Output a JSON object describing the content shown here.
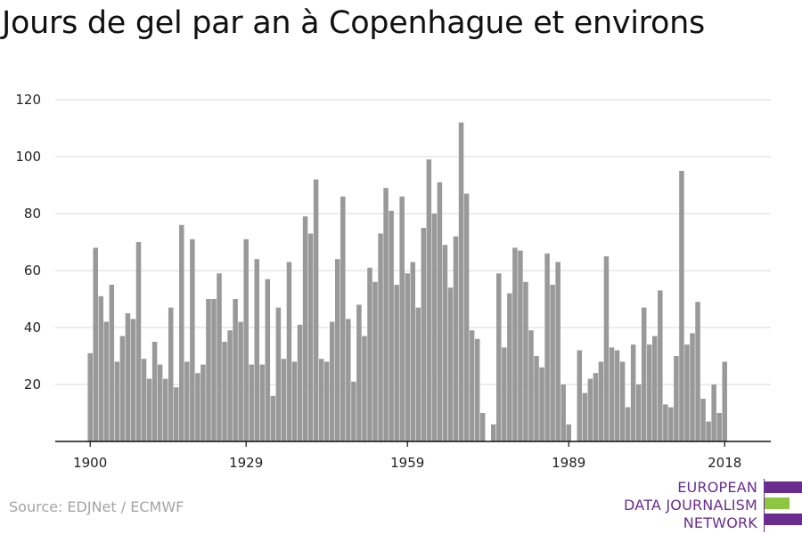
{
  "title": "Jours de gel par an à Copenhague et environs",
  "source": "Source: EDJNet / ECMWF",
  "logo": {
    "lines": [
      "EUROPEAN",
      "DATA JOURNALISM",
      "NETWORK"
    ],
    "colors": {
      "text": "#6a2c91",
      "purple": "#6a2c91",
      "green": "#8dc63f"
    }
  },
  "colors": {
    "bar": "#999999",
    "grid": "#d9d9d9",
    "axis": "#111111",
    "tick_text": "#222222"
  },
  "chart_data": {
    "type": "bar",
    "title": "Jours de gel par an à Copenhague et environs",
    "xlabel": "",
    "ylabel": "",
    "x_start": 1900,
    "x_end": 2018,
    "x_ticks": [
      1900,
      1929,
      1959,
      1989,
      2018
    ],
    "y_ticks": [
      20,
      40,
      60,
      80,
      100,
      120
    ],
    "ylim": [
      0,
      120
    ],
    "grid": true,
    "legend": "none",
    "values": [
      31,
      68,
      51,
      42,
      55,
      28,
      37,
      45,
      43,
      70,
      29,
      22,
      35,
      27,
      22,
      47,
      19,
      76,
      28,
      71,
      24,
      27,
      50,
      50,
      59,
      35,
      39,
      50,
      42,
      71,
      27,
      64,
      27,
      57,
      16,
      47,
      29,
      63,
      28,
      41,
      79,
      73,
      92,
      29,
      28,
      42,
      64,
      86,
      43,
      21,
      48,
      37,
      61,
      56,
      73,
      89,
      81,
      55,
      86,
      59,
      63,
      47,
      75,
      99,
      80,
      91,
      69,
      54,
      72,
      112,
      87,
      39,
      36,
      10,
      0,
      6,
      59,
      33,
      52,
      68,
      67,
      56,
      39,
      30,
      26,
      66,
      55,
      63,
      20,
      6,
      0,
      32,
      17,
      22,
      24,
      28,
      65,
      33,
      32,
      28,
      12,
      34,
      20,
      47,
      34,
      37,
      53,
      13,
      12,
      30,
      95,
      34,
      38,
      49,
      15,
      7,
      20,
      10,
      28
    ]
  }
}
